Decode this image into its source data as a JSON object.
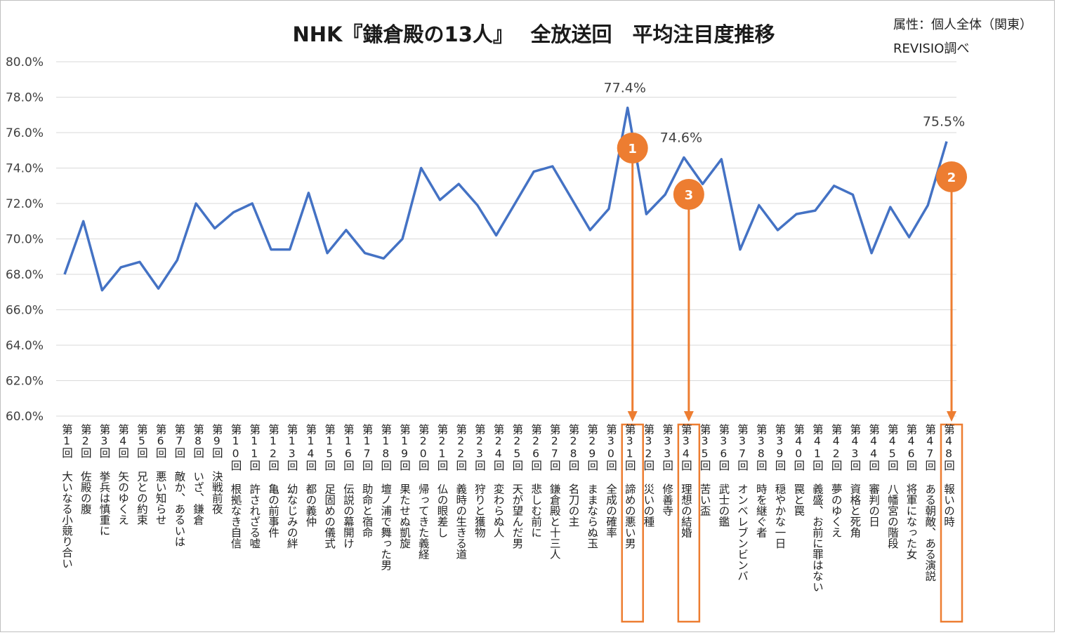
{
  "chart_data": {
    "type": "line",
    "title": "NHK『鎌倉殿の13人』　 全放送回　平均注目度推移",
    "notes": [
      "属性：個人全体（関東）",
      "REVISIO調べ"
    ],
    "ylim": [
      60,
      80
    ],
    "yticks": [
      "60.0%",
      "62.0%",
      "64.0%",
      "66.0%",
      "68.0%",
      "70.0%",
      "72.0%",
      "74.0%",
      "76.0%",
      "78.0%",
      "80.0%"
    ],
    "grid": true,
    "line_color": "#4472c4",
    "marker_color": "#ed7d31",
    "categories": [
      "第1回 大いなる小競り合い",
      "第2回 佐殿の腹",
      "第3回 挙兵は慎重に",
      "第4回 矢のゆくえ",
      "第5回 兄との約束",
      "第6回 悪い知らせ",
      "第7回 敵か、あるいは",
      "第8回 いざ、鎌倉",
      "第9回 決戦前夜",
      "第10回 根拠なき自信",
      "第11回 許されざる嘘",
      "第12回 亀の前事件",
      "第13回 幼なじみの絆",
      "第14回 都の義仲",
      "第15回 足固めの儀式",
      "第16回 伝説の幕開け",
      "第17回 助命と宿命",
      "第18回 壇ノ浦で舞った男",
      "第19回 果たせぬ凱旋",
      "第20回 帰ってきた義経",
      "第21回 仏の眼差し",
      "第22回 義時の生きる道",
      "第23回 狩りと獲物",
      "第24回 変わらぬ人",
      "第25回 天が望んだ男",
      "第26回 悲しむ前に",
      "第27回 鎌倉殿と十三人",
      "第28回 名刀の主",
      "第29回 ままならぬ玉",
      "第30回 全成の確率",
      "第31回 諦めの悪い男",
      "第32回 災いの種",
      "第33回 修善寺",
      "第34回 理想の結婚",
      "第35回 苦い盃",
      "第36回 武士の鑑",
      "第37回 オンベレブンビンバ",
      "第38回 時を継ぐ者",
      "第39回 穏やかな一日",
      "第40回 罠と罠",
      "第41回 義盛、お前に罪はない",
      "第42回 夢のゆくえ",
      "第43回 資格と死角",
      "第44回 審判の日",
      "第45回 八幡宮の階段",
      "第46回 将軍になった女",
      "第47回 ある朝敵、ある演説",
      "第48回 報いの時"
    ],
    "series": [
      {
        "values": [
          68.0,
          71.0,
          67.1,
          68.4,
          68.7,
          67.2,
          68.8,
          72.0,
          70.6,
          71.5,
          72.0,
          69.4,
          69.4,
          72.6,
          69.2,
          70.5,
          69.2,
          68.9,
          70.0,
          74.0,
          72.2,
          73.1,
          71.9,
          70.2,
          72.0,
          73.8,
          74.1,
          72.3,
          70.5,
          71.7,
          77.4,
          71.4,
          72.5,
          74.6,
          73.1,
          74.5,
          69.4,
          71.9,
          70.5,
          71.4,
          71.6,
          73.0,
          72.5,
          69.2,
          71.8,
          70.1,
          71.9,
          75.5
        ]
      }
    ],
    "data_labels": [
      {
        "index": 30,
        "text": "77.4%"
      },
      {
        "index": 33,
        "text": "74.6%"
      },
      {
        "index": 47,
        "text": "75.5%"
      }
    ],
    "markers": [
      {
        "index": 30,
        "text": "1"
      },
      {
        "index": 47,
        "text": "2"
      },
      {
        "index": 33,
        "text": "3"
      }
    ]
  }
}
